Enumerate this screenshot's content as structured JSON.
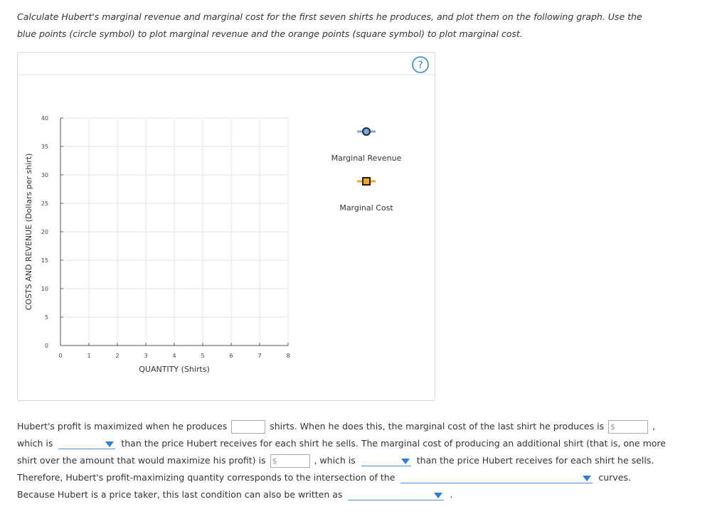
{
  "instructions": "Calculate Hubert's marginal revenue and marginal cost for the first seven shirts he produces, and plot them on the following graph. Use the blue points (circle symbol) to plot marginal revenue and the orange points (square symbol) to plot marginal cost.",
  "graph": {
    "help": "?",
    "y_label": "COSTS AND REVENUE (Dollars per shirt)",
    "x_label": "QUANTITY (Shirts)",
    "xlim": [
      0,
      8
    ],
    "xticks": [
      0,
      1,
      2,
      3,
      4,
      5,
      6,
      7,
      8
    ],
    "ylim": [
      0,
      40
    ],
    "yticks": [
      0,
      5,
      10,
      15,
      20,
      25,
      30,
      35,
      40
    ],
    "grid": true,
    "legend": [
      {
        "name": "Marginal Revenue",
        "color": "#7aa6d8",
        "marker": "circle"
      },
      {
        "name": "Marginal Cost",
        "color": "#f5a623",
        "marker": "square"
      }
    ]
  },
  "question": {
    "currency_symbol": "$",
    "parts": [
      "Hubert's profit is maximized when he produces",
      {
        "field": "number"
      },
      "shirts. When he does this, the marginal cost of the last shirt he produces is",
      {
        "field": "dollar"
      },
      ", which is",
      {
        "field": "dropdown"
      },
      "than the price Hubert receives for each shirt he sells. The marginal cost of producing an additional shirt (that is, one more shirt over the amount that would maximize his profit) is",
      {
        "field": "dollar"
      },
      ", which is",
      {
        "field": "dropdown"
      },
      "than the price Hubert receives for each shirt he sells. Therefore, Hubert's profit-maximizing quantity corresponds to the intersection of the",
      {
        "field": "dropdown"
      },
      "curves. Because Hubert is a price taker, this last condition can also be written as",
      {
        "field": "dropdown"
      },
      "."
    ]
  }
}
